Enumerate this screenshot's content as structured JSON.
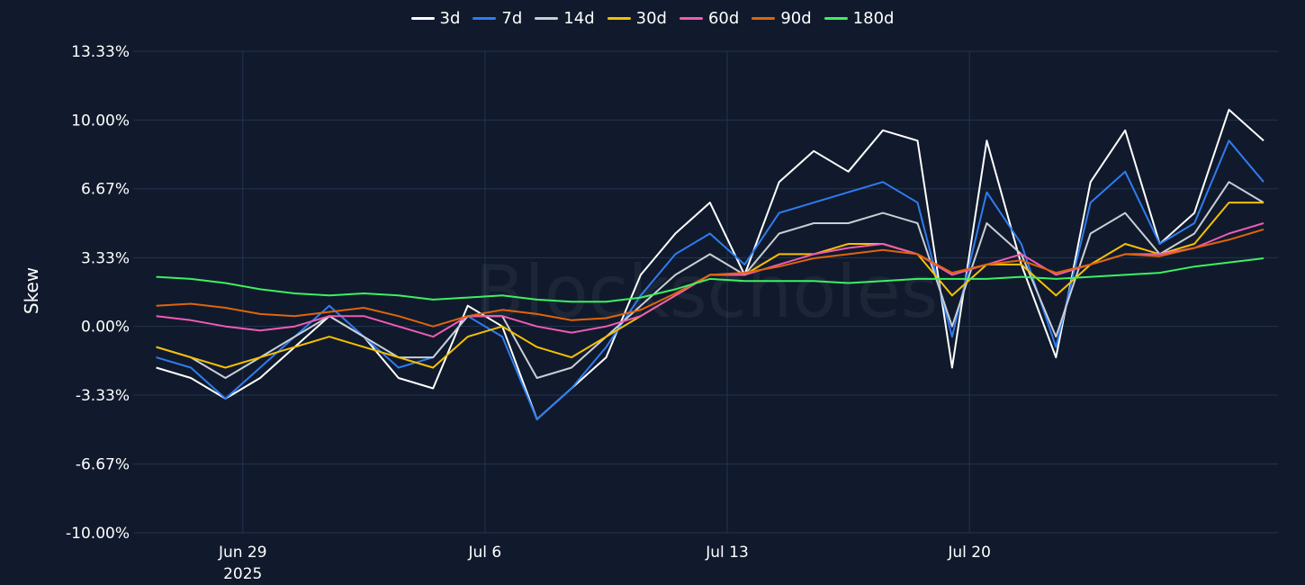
{
  "chart_data": {
    "type": "line",
    "title": "",
    "xlabel": "",
    "ylabel": "Skew",
    "watermark": "Blockscholes",
    "ylim": [
      -10,
      13.33
    ],
    "xlim": [
      "2025-06-25T20:00",
      "2025-07-28T22:00"
    ],
    "y_ticks": [
      -10.0,
      -6.67,
      -3.33,
      0.0,
      3.33,
      6.67,
      10.0,
      13.33
    ],
    "y_tick_labels": [
      "-10.00%",
      "-6.67%",
      "-3.33%",
      "0.00%",
      "3.33%",
      "6.67%",
      "10.00%",
      "13.33%"
    ],
    "x_ticks": [
      "2025-06-29",
      "2025-07-06",
      "2025-07-13",
      "2025-07-20"
    ],
    "x_tick_labels": [
      "Jun 29",
      "Jul 6",
      "Jul 13",
      "Jul 20"
    ],
    "x_tick_sublabels": [
      "2025",
      "",
      "",
      ""
    ],
    "grid": true,
    "legend_position": "top-center",
    "background": "#101a2c",
    "grid_color": "#22334f",
    "x": [
      "2025-06-26",
      "2025-06-27",
      "2025-06-28",
      "2025-06-29",
      "2025-06-30",
      "2025-07-01",
      "2025-07-02",
      "2025-07-03",
      "2025-07-04",
      "2025-07-05",
      "2025-07-06",
      "2025-07-07",
      "2025-07-08",
      "2025-07-09",
      "2025-07-10",
      "2025-07-11",
      "2025-07-12",
      "2025-07-13",
      "2025-07-14",
      "2025-07-15",
      "2025-07-16",
      "2025-07-17",
      "2025-07-18",
      "2025-07-19",
      "2025-07-20",
      "2025-07-21",
      "2025-07-22",
      "2025-07-23",
      "2025-07-24",
      "2025-07-25",
      "2025-07-26",
      "2025-07-27",
      "2025-07-28"
    ],
    "series": [
      {
        "name": "3d",
        "color": "#ffffff",
        "values": [
          -2.0,
          -2.5,
          -3.5,
          -2.5,
          -1.0,
          0.5,
          -0.5,
          -2.5,
          -3.0,
          1.0,
          0.0,
          -4.5,
          -3.0,
          -1.5,
          2.5,
          4.5,
          6.0,
          2.5,
          7.0,
          8.5,
          7.5,
          9.5,
          9.0,
          -2.0,
          9.0,
          3.0,
          -1.5,
          7.0,
          9.5,
          4.0,
          5.5,
          10.5,
          9.0
        ]
      },
      {
        "name": "7d",
        "color": "#2f7cf0",
        "values": [
          -1.5,
          -2.0,
          -3.5,
          -2.0,
          -0.5,
          1.0,
          -0.5,
          -2.0,
          -1.5,
          0.5,
          -0.5,
          -4.5,
          -3.0,
          -1.0,
          1.5,
          3.5,
          4.5,
          3.0,
          5.5,
          6.0,
          6.5,
          7.0,
          6.0,
          -0.5,
          6.5,
          4.0,
          -1.0,
          6.0,
          7.5,
          4.0,
          5.0,
          9.0,
          7.0
        ]
      },
      {
        "name": "14d",
        "color": "#c9ced6",
        "values": [
          -1.0,
          -1.5,
          -2.5,
          -1.5,
          -0.5,
          0.5,
          -0.5,
          -1.5,
          -1.5,
          0.5,
          0.5,
          -2.5,
          -2.0,
          -0.5,
          1.0,
          2.5,
          3.5,
          2.5,
          4.5,
          5.0,
          5.0,
          5.5,
          5.0,
          0.0,
          5.0,
          3.5,
          -0.5,
          4.5,
          5.5,
          3.5,
          4.5,
          7.0,
          6.0
        ]
      },
      {
        "name": "30d",
        "color": "#f5c000",
        "values": [
          -1.0,
          -1.5,
          -2.0,
          -1.5,
          -1.0,
          -0.5,
          -1.0,
          -1.5,
          -2.0,
          -0.5,
          0.0,
          -1.0,
          -1.5,
          -0.5,
          0.5,
          1.5,
          2.5,
          2.5,
          3.5,
          3.5,
          4.0,
          4.0,
          3.5,
          1.5,
          3.0,
          3.0,
          1.5,
          3.0,
          4.0,
          3.5,
          4.0,
          6.0,
          6.0
        ]
      },
      {
        "name": "60d",
        "color": "#f05bb4",
        "values": [
          0.5,
          0.3,
          0.0,
          -0.2,
          0.0,
          0.5,
          0.5,
          0.0,
          -0.5,
          0.5,
          0.5,
          0.0,
          -0.3,
          0.0,
          0.5,
          1.5,
          2.5,
          2.5,
          3.0,
          3.5,
          3.8,
          4.0,
          3.5,
          2.5,
          3.0,
          3.5,
          2.5,
          3.0,
          3.5,
          3.5,
          3.8,
          4.5,
          5.0
        ]
      },
      {
        "name": "90d",
        "color": "#e0650a",
        "values": [
          1.0,
          1.1,
          0.9,
          0.6,
          0.5,
          0.7,
          0.9,
          0.5,
          0.0,
          0.5,
          0.8,
          0.6,
          0.3,
          0.4,
          0.8,
          1.6,
          2.5,
          2.6,
          2.9,
          3.3,
          3.5,
          3.7,
          3.5,
          2.6,
          3.0,
          3.2,
          2.6,
          3.0,
          3.5,
          3.4,
          3.8,
          4.2,
          4.7
        ]
      },
      {
        "name": "180d",
        "color": "#3df062",
        "values": [
          2.4,
          2.3,
          2.1,
          1.8,
          1.6,
          1.5,
          1.6,
          1.5,
          1.3,
          1.4,
          1.5,
          1.3,
          1.2,
          1.2,
          1.4,
          1.8,
          2.3,
          2.2,
          2.2,
          2.2,
          2.1,
          2.2,
          2.3,
          2.3,
          2.3,
          2.4,
          2.3,
          2.4,
          2.5,
          2.6,
          2.9,
          3.1,
          3.3
        ]
      }
    ]
  }
}
